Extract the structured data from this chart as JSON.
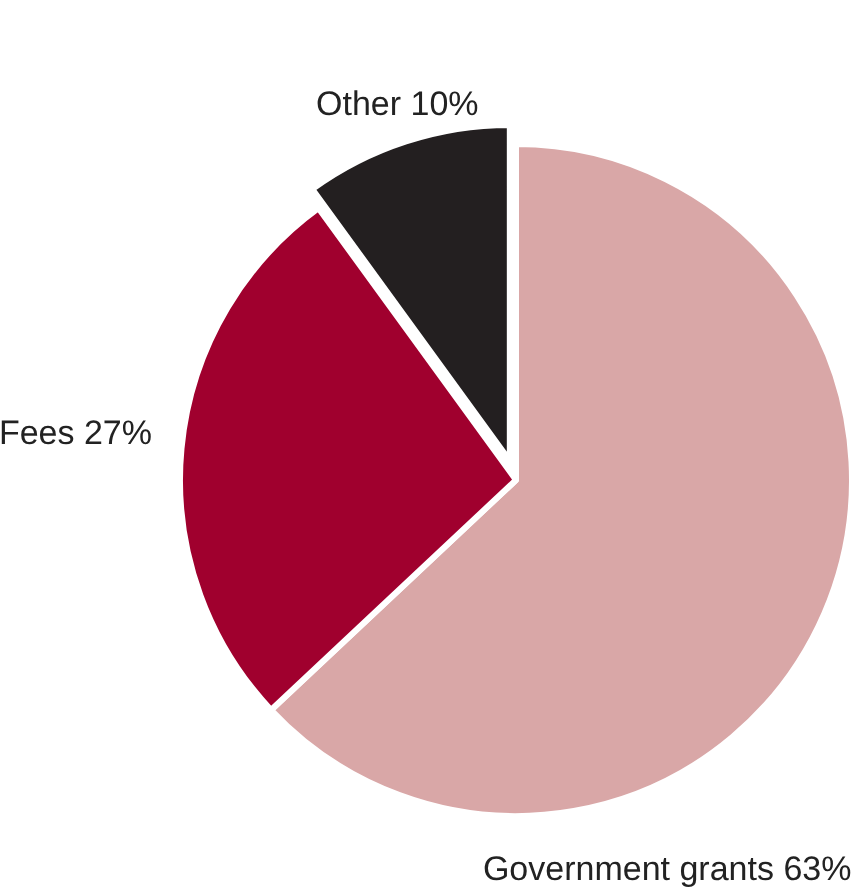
{
  "chart_data": {
    "type": "pie",
    "categories": [
      "Government grants",
      "Fees",
      "Other"
    ],
    "values": [
      63,
      27,
      10
    ],
    "value_labels": [
      "63%",
      "27%",
      "10%"
    ],
    "colors": [
      "#d9a7a7",
      "#a0002e",
      "#231f20"
    ]
  }
}
